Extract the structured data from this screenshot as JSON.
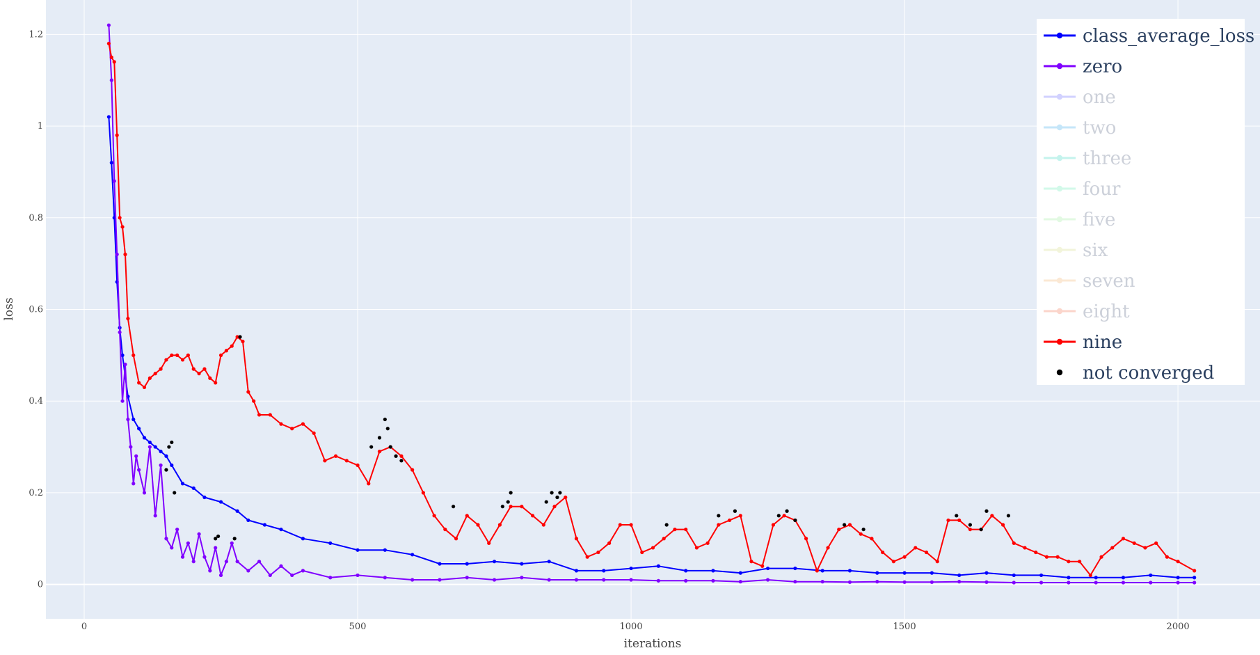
{
  "chart_data": {
    "type": "line",
    "xlabel": "iterations",
    "ylabel": "loss",
    "xlim": [
      -70,
      2150
    ],
    "ylim": [
      -0.075,
      1.275
    ],
    "x_ticks": [
      0,
      500,
      1000,
      1500,
      2000
    ],
    "x_tick_labels": [
      "0",
      "500",
      "1000",
      "1500",
      "2000"
    ],
    "y_ticks": [
      0,
      0.2,
      0.4,
      0.6,
      0.8,
      1,
      1.2
    ],
    "y_tick_labels": [
      "0",
      "0.2",
      "0.4",
      "0.6",
      "0.8",
      "1",
      "1.2"
    ],
    "grid": true,
    "legend_position": "top-right",
    "legend": [
      {
        "label": "class_average_loss",
        "color": "#0000ff",
        "visible": true,
        "symbol": "line-marker"
      },
      {
        "label": "zero",
        "color": "#8000ff",
        "visible": true,
        "symbol": "line-marker"
      },
      {
        "label": "one",
        "color": "#a5a5ff",
        "visible": false,
        "symbol": "line-marker"
      },
      {
        "label": "two",
        "color": "#8ccef5",
        "visible": false,
        "symbol": "line-marker"
      },
      {
        "label": "three",
        "color": "#8ae8dd",
        "visible": false,
        "symbol": "line-marker"
      },
      {
        "label": "four",
        "color": "#a6f5d4",
        "visible": false,
        "symbol": "line-marker"
      },
      {
        "label": "five",
        "color": "#c7f5c6",
        "visible": false,
        "symbol": "line-marker"
      },
      {
        "label": "six",
        "color": "#e6eab6",
        "visible": false,
        "symbol": "line-marker"
      },
      {
        "label": "seven",
        "color": "#f8d3aa",
        "visible": false,
        "symbol": "line-marker"
      },
      {
        "label": "eight",
        "color": "#f8ad98",
        "visible": false,
        "symbol": "line-marker"
      },
      {
        "label": "nine",
        "color": "#ff0000",
        "visible": true,
        "symbol": "line-marker"
      },
      {
        "label": "not converged",
        "color": "#000000",
        "visible": true,
        "symbol": "marker"
      }
    ],
    "series": [
      {
        "name": "class_average_loss",
        "color": "#0000ff",
        "x": [
          45,
          50,
          55,
          60,
          65,
          70,
          80,
          90,
          100,
          110,
          120,
          130,
          140,
          150,
          160,
          180,
          200,
          220,
          250,
          280,
          300,
          330,
          360,
          400,
          450,
          500,
          550,
          600,
          650,
          700,
          750,
          800,
          850,
          900,
          950,
          1000,
          1050,
          1100,
          1150,
          1200,
          1250,
          1300,
          1350,
          1400,
          1450,
          1500,
          1550,
          1600,
          1650,
          1700,
          1750,
          1800,
          1850,
          1900,
          1950,
          2000,
          2030
        ],
        "y": [
          1.02,
          0.92,
          0.8,
          0.66,
          0.56,
          0.5,
          0.41,
          0.36,
          0.34,
          0.32,
          0.31,
          0.3,
          0.29,
          0.28,
          0.26,
          0.22,
          0.21,
          0.19,
          0.18,
          0.16,
          0.14,
          0.13,
          0.12,
          0.1,
          0.09,
          0.075,
          0.075,
          0.065,
          0.045,
          0.045,
          0.05,
          0.045,
          0.05,
          0.03,
          0.03,
          0.035,
          0.04,
          0.03,
          0.03,
          0.025,
          0.035,
          0.035,
          0.03,
          0.03,
          0.025,
          0.025,
          0.025,
          0.02,
          0.025,
          0.02,
          0.02,
          0.015,
          0.015,
          0.015,
          0.02,
          0.015,
          0.015
        ]
      },
      {
        "name": "zero",
        "color": "#8000ff",
        "x": [
          45,
          50,
          55,
          60,
          65,
          70,
          75,
          80,
          85,
          90,
          95,
          100,
          110,
          120,
          130,
          140,
          150,
          160,
          170,
          180,
          190,
          200,
          210,
          220,
          230,
          240,
          250,
          260,
          270,
          280,
          300,
          320,
          340,
          360,
          380,
          400,
          450,
          500,
          550,
          600,
          650,
          700,
          750,
          800,
          850,
          900,
          950,
          1000,
          1050,
          1100,
          1150,
          1200,
          1250,
          1300,
          1350,
          1400,
          1450,
          1500,
          1550,
          1600,
          1650,
          1700,
          1750,
          1800,
          1850,
          1900,
          1950,
          2000,
          2030
        ],
        "y": [
          1.22,
          1.1,
          0.88,
          0.72,
          0.55,
          0.4,
          0.48,
          0.36,
          0.3,
          0.22,
          0.28,
          0.25,
          0.2,
          0.3,
          0.15,
          0.26,
          0.1,
          0.08,
          0.12,
          0.06,
          0.09,
          0.05,
          0.11,
          0.06,
          0.03,
          0.08,
          0.02,
          0.05,
          0.09,
          0.05,
          0.03,
          0.05,
          0.02,
          0.04,
          0.02,
          0.03,
          0.015,
          0.02,
          0.015,
          0.01,
          0.01,
          0.015,
          0.01,
          0.015,
          0.01,
          0.01,
          0.01,
          0.01,
          0.008,
          0.008,
          0.008,
          0.006,
          0.01,
          0.006,
          0.006,
          0.005,
          0.006,
          0.005,
          0.005,
          0.006,
          0.005,
          0.004,
          0.004,
          0.004,
          0.004,
          0.004,
          0.004,
          0.004,
          0.004
        ]
      },
      {
        "name": "nine",
        "color": "#ff0000",
        "x": [
          45,
          50,
          55,
          60,
          65,
          70,
          75,
          80,
          90,
          100,
          110,
          120,
          130,
          140,
          150,
          160,
          170,
          180,
          190,
          200,
          210,
          220,
          230,
          240,
          250,
          260,
          270,
          280,
          290,
          300,
          310,
          320,
          340,
          360,
          380,
          400,
          420,
          440,
          460,
          480,
          500,
          520,
          540,
          560,
          580,
          600,
          620,
          640,
          660,
          680,
          700,
          720,
          740,
          760,
          780,
          800,
          820,
          840,
          860,
          880,
          900,
          920,
          940,
          960,
          980,
          1000,
          1020,
          1040,
          1060,
          1080,
          1100,
          1120,
          1140,
          1160,
          1180,
          1200,
          1220,
          1240,
          1260,
          1280,
          1300,
          1320,
          1340,
          1360,
          1380,
          1400,
          1420,
          1440,
          1460,
          1480,
          1500,
          1520,
          1540,
          1560,
          1580,
          1600,
          1620,
          1640,
          1660,
          1680,
          1700,
          1720,
          1740,
          1760,
          1780,
          1800,
          1820,
          1840,
          1860,
          1880,
          1900,
          1920,
          1940,
          1960,
          1980,
          2000,
          2030
        ],
        "y": [
          1.18,
          1.15,
          1.14,
          0.98,
          0.8,
          0.78,
          0.72,
          0.58,
          0.5,
          0.44,
          0.43,
          0.45,
          0.46,
          0.47,
          0.49,
          0.5,
          0.5,
          0.49,
          0.5,
          0.47,
          0.46,
          0.47,
          0.45,
          0.44,
          0.5,
          0.51,
          0.52,
          0.54,
          0.53,
          0.42,
          0.4,
          0.37,
          0.37,
          0.35,
          0.34,
          0.35,
          0.33,
          0.27,
          0.28,
          0.27,
          0.26,
          0.22,
          0.29,
          0.3,
          0.28,
          0.25,
          0.2,
          0.15,
          0.12,
          0.1,
          0.15,
          0.13,
          0.09,
          0.13,
          0.17,
          0.17,
          0.15,
          0.13,
          0.17,
          0.19,
          0.1,
          0.06,
          0.07,
          0.09,
          0.13,
          0.13,
          0.07,
          0.08,
          0.1,
          0.12,
          0.12,
          0.08,
          0.09,
          0.13,
          0.14,
          0.15,
          0.05,
          0.04,
          0.13,
          0.15,
          0.14,
          0.1,
          0.03,
          0.08,
          0.12,
          0.13,
          0.11,
          0.1,
          0.07,
          0.05,
          0.06,
          0.08,
          0.07,
          0.05,
          0.14,
          0.14,
          0.12,
          0.12,
          0.15,
          0.13,
          0.09,
          0.08,
          0.07,
          0.06,
          0.06,
          0.05,
          0.05,
          0.02,
          0.06,
          0.08,
          0.1,
          0.09,
          0.08,
          0.09,
          0.06,
          0.05,
          0.03
        ]
      }
    ],
    "not_converged": {
      "name": "not converged",
      "color": "#000000",
      "x": [
        240,
        245,
        275,
        285,
        525,
        540,
        550,
        555,
        560,
        570,
        580,
        675,
        765,
        775,
        780,
        845,
        855,
        865,
        870,
        1065,
        1160,
        1190,
        1270,
        1285,
        1300,
        1390,
        1425,
        1595,
        1620,
        1640,
        1650,
        1690,
        150,
        155,
        160,
        165
      ],
      "y": [
        0.1,
        0.105,
        0.1,
        0.54,
        0.3,
        0.32,
        0.36,
        0.34,
        0.3,
        0.28,
        0.27,
        0.17,
        0.17,
        0.18,
        0.2,
        0.18,
        0.2,
        0.19,
        0.2,
        0.13,
        0.15,
        0.16,
        0.15,
        0.16,
        0.14,
        0.13,
        0.12,
        0.15,
        0.13,
        0.12,
        0.16,
        0.15,
        0.25,
        0.3,
        0.31,
        0.2
      ]
    }
  }
}
